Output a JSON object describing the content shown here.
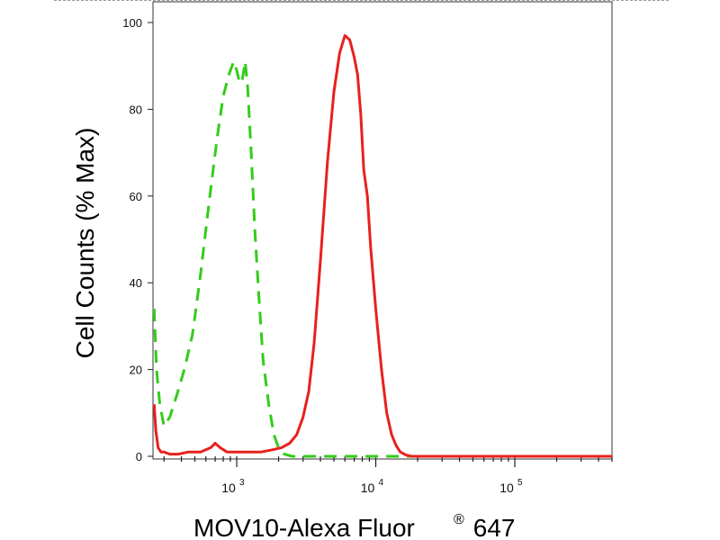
{
  "chart_data": {
    "type": "line",
    "xlabel": "MOV10-Alexa Fluor",
    "xlabel_mark": "®",
    "xlabel_suffix": " 647",
    "ylabel": "Cell Counts (% Max)",
    "x_scale": "log",
    "xlim": [
      250,
      500000
    ],
    "ylim": [
      0,
      100
    ],
    "yticks": [
      0,
      20,
      40,
      60,
      80,
      100
    ],
    "xticks_major": [
      {
        "value": 1000,
        "base": "10",
        "exp": "3"
      },
      {
        "value": 10000,
        "base": "10",
        "exp": "4"
      },
      {
        "value": 100000,
        "base": "10",
        "exp": "5"
      }
    ],
    "series": [
      {
        "color": "#33cc1a",
        "style": "dashed",
        "x": [
          255,
          265,
          280,
          300,
          330,
          370,
          420,
          480,
          550,
          630,
          720,
          800,
          880,
          950,
          1000,
          1050,
          1100,
          1150,
          1200,
          1270,
          1350,
          1450,
          1550,
          1700,
          1850,
          2000,
          2200,
          2500,
          3000,
          4000,
          6000,
          10000,
          20000,
          50000,
          100000,
          500000
        ],
        "y": [
          34,
          20,
          12,
          7,
          9,
          14,
          20,
          28,
          42,
          58,
          73,
          83,
          88,
          91,
          89,
          86,
          87,
          91,
          85,
          70,
          52,
          36,
          22,
          12,
          5,
          2,
          0.5,
          0,
          0,
          0,
          0,
          0,
          0,
          0,
          0,
          0
        ]
      },
      {
        "color": "#e8211c",
        "style": "solid",
        "x": [
          255,
          262,
          272,
          285,
          300,
          330,
          380,
          450,
          550,
          650,
          700,
          760,
          850,
          1000,
          1200,
          1500,
          1800,
          2100,
          2400,
          2700,
          3000,
          3300,
          3600,
          4000,
          4500,
          5000,
          5500,
          6000,
          6500,
          7000,
          7400,
          7800,
          8200,
          8700,
          9200,
          10000,
          11000,
          12000,
          13000,
          14000,
          15000,
          16500,
          18000,
          20000,
          23000,
          30000,
          50000,
          100000,
          500000
        ],
        "y": [
          12,
          6,
          2,
          1,
          1,
          0.5,
          0.5,
          1,
          1,
          2,
          3,
          2,
          1,
          1,
          1,
          1,
          1.5,
          2,
          3,
          5,
          9,
          15,
          26,
          45,
          68,
          84,
          93,
          97,
          96,
          92,
          88,
          79,
          66,
          60,
          48,
          34,
          20,
          10,
          5,
          2.5,
          1,
          0.3,
          0,
          0,
          0,
          0,
          0,
          0,
          0
        ]
      }
    ]
  }
}
